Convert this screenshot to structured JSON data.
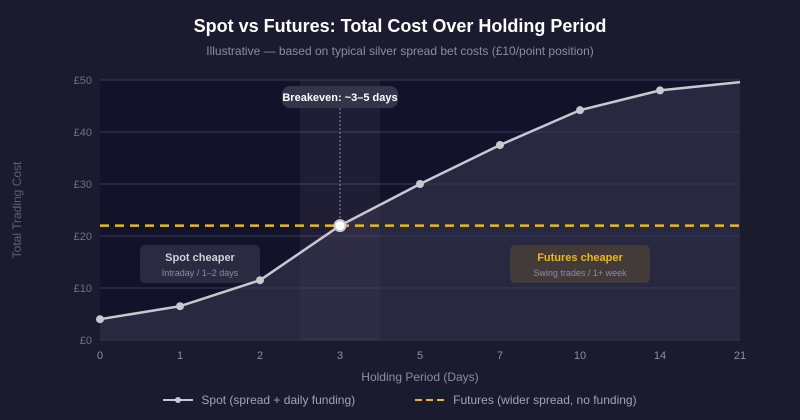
{
  "chart_data": {
    "type": "line",
    "title": "Spot vs Futures: Total Cost Over Holding Period",
    "subtitle": "Illustrative — based on typical silver spread bet costs (£10/point position)",
    "xlabel": "Holding Period (Days)",
    "ylabel": "Total Trading Cost",
    "categories": [
      "0",
      "1",
      "2",
      "3",
      "5",
      "7",
      "10",
      "14",
      "21"
    ],
    "ylim": [
      0,
      50
    ],
    "yticks": [
      0,
      10,
      20,
      30,
      40,
      50
    ],
    "ytick_labels": [
      "£0",
      "£10",
      "£20",
      "£30",
      "£40",
      "£50"
    ],
    "grid": true,
    "legend_position": "bottom",
    "series": [
      {
        "name": "Spot (spread + daily funding)",
        "values": [
          4,
          6.5,
          11.5,
          22,
          30,
          37.5,
          44.2,
          48,
          49.6
        ],
        "color": "#c8c8d0"
      },
      {
        "name": "Futures (wider spread, no funding)",
        "values": [
          22,
          22,
          22,
          22,
          22,
          22,
          22,
          22,
          22
        ],
        "color": "#f0b90b",
        "style": "dashed"
      }
    ],
    "annotations": {
      "breakeven": {
        "label": "Breakeven: ~3–5 days",
        "category": "3"
      },
      "spot_box": {
        "title": "Spot cheaper",
        "subtitle": "Intraday / 1–2 days"
      },
      "futures_box": {
        "title": "Futures cheaper",
        "subtitle": "Swing trades / 1+ week"
      }
    }
  },
  "colors": {
    "accent": "#f0b90b",
    "line": "#c8c8d0",
    "background": "#1b1b2f",
    "plot": "#13122b"
  }
}
